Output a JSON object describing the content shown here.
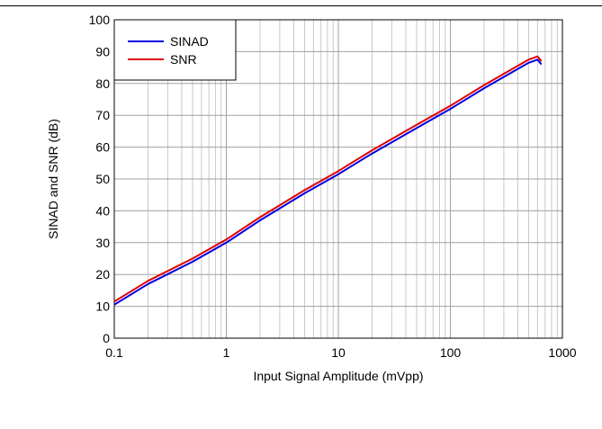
{
  "chart_data": {
    "type": "line",
    "title": "",
    "xlabel": "Input Signal Amplitude (mVpp)",
    "ylabel": "SINAD and SNR (dB)",
    "x_scale": "log",
    "xlim": [
      0.1,
      1000
    ],
    "ylim": [
      0,
      100
    ],
    "x_ticks": [
      "0.1",
      "1",
      "10",
      "100",
      "1000"
    ],
    "y_ticks": [
      "0",
      "10",
      "20",
      "30",
      "40",
      "50",
      "60",
      "70",
      "80",
      "90",
      "100"
    ],
    "grid": true,
    "legend_position": "top-left",
    "series": [
      {
        "name": "SINAD",
        "color": "#0000e0",
        "x": [
          0.1,
          0.2,
          0.5,
          1,
          2,
          5,
          10,
          20,
          50,
          100,
          200,
          500,
          600,
          650
        ],
        "y": [
          10.5,
          17,
          24,
          30,
          37,
          45.5,
          51.5,
          58,
          66,
          72,
          78.5,
          86.5,
          87.5,
          86
        ]
      },
      {
        "name": "SNR",
        "color": "#e00000",
        "x": [
          0.1,
          0.2,
          0.5,
          1,
          2,
          5,
          10,
          20,
          50,
          100,
          200,
          500,
          600,
          650
        ],
        "y": [
          11.5,
          18,
          25,
          31,
          38,
          46.5,
          52.5,
          59,
          67,
          73,
          79.5,
          87.5,
          88.5,
          87
        ]
      }
    ]
  }
}
